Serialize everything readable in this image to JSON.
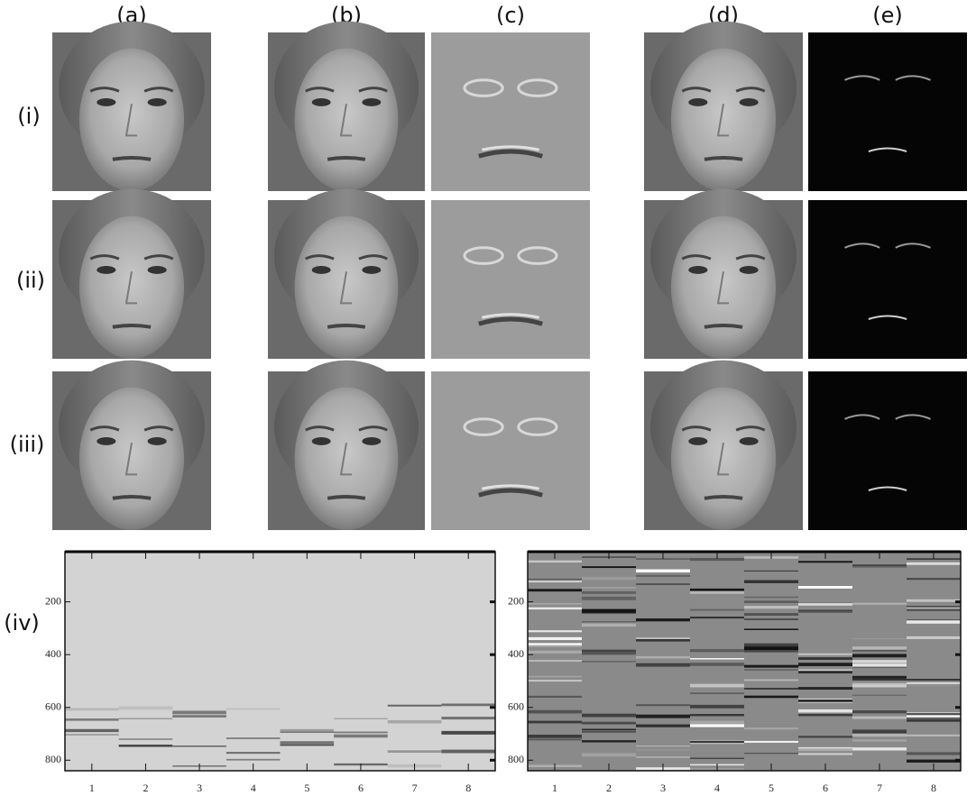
{
  "columns": [
    "(a)",
    "(b)",
    "(c)",
    "(d)",
    "(e)"
  ],
  "rows": [
    "(i)",
    "(ii)",
    "(iii)",
    "(iv)"
  ],
  "plots": [
    {
      "xlim": [
        0.5,
        8.5
      ],
      "ylim": [
        10,
        840
      ],
      "xticks": [
        1,
        2,
        3,
        4,
        5,
        6,
        7,
        8
      ],
      "yticks": [
        200,
        400,
        600,
        800
      ]
    },
    {
      "xlim": [
        0.5,
        8.5
      ],
      "ylim": [
        10,
        840
      ],
      "xticks": [
        1,
        2,
        3,
        4,
        5,
        6,
        7,
        8
      ],
      "yticks": [
        200,
        400,
        600,
        800
      ]
    }
  ]
}
